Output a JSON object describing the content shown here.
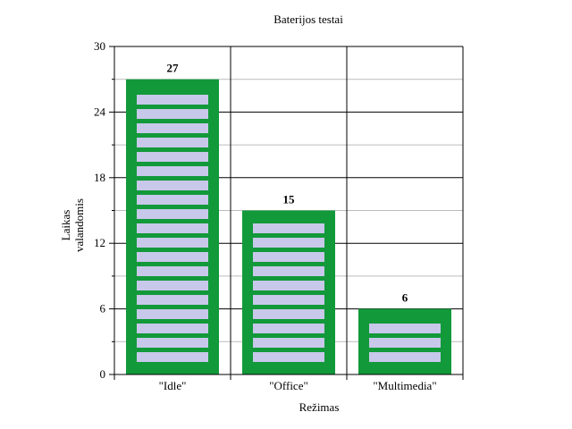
{
  "chart_data": {
    "type": "bar",
    "title": "Baterijos testai",
    "xlabel": "Režimas",
    "ylabel_lines": [
      "Laikas",
      "valandomis"
    ],
    "categories": [
      "\"Idle\"",
      "\"Office\"",
      "\"Multimedia\""
    ],
    "values": [
      27,
      15,
      6
    ],
    "data_labels": [
      "27",
      "15",
      "6"
    ],
    "ylim": [
      0,
      30
    ],
    "yticks": [
      0,
      6,
      12,
      18,
      24,
      30
    ],
    "ytick_labels": [
      "0",
      "6",
      "12",
      "18",
      "24",
      "30"
    ],
    "grid": true,
    "legend": "none"
  },
  "colors": {
    "bar_fill": "#12993a",
    "bar_stripe": "#c8c8ea",
    "grid_major": "#000000",
    "grid_minor": "#bbbbbb",
    "axis": "#000000"
  }
}
